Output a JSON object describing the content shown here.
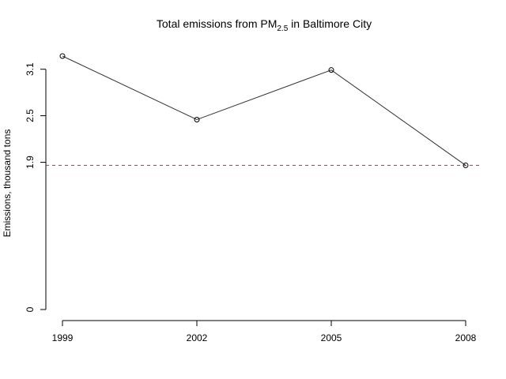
{
  "chart_data": {
    "type": "line",
    "title_main": "Total emissions from PM",
    "title_sub": "2.5",
    "title_rest": " in Baltimore City",
    "ylabel": "Emissions, thousand tons",
    "xlabel": "",
    "x": [
      1999,
      2002,
      2005,
      2008
    ],
    "x_tick_labels": [
      "1999",
      "2002",
      "2005",
      "2008"
    ],
    "y_ticks": [
      0,
      1.9,
      2.5,
      3.1
    ],
    "y_tick_labels": [
      "0",
      "1.9",
      "2.5",
      "3.1"
    ],
    "series": [
      {
        "values": [
          3.27,
          2.45,
          3.09,
          1.86
        ],
        "color": "#333333"
      }
    ],
    "reference_line": {
      "y": 1.86,
      "color": "#d62728",
      "style": "dashed"
    },
    "ylim": [
      0,
      3.27
    ],
    "xlim": [
      1999,
      2008
    ],
    "grid": false,
    "legend": "none"
  }
}
